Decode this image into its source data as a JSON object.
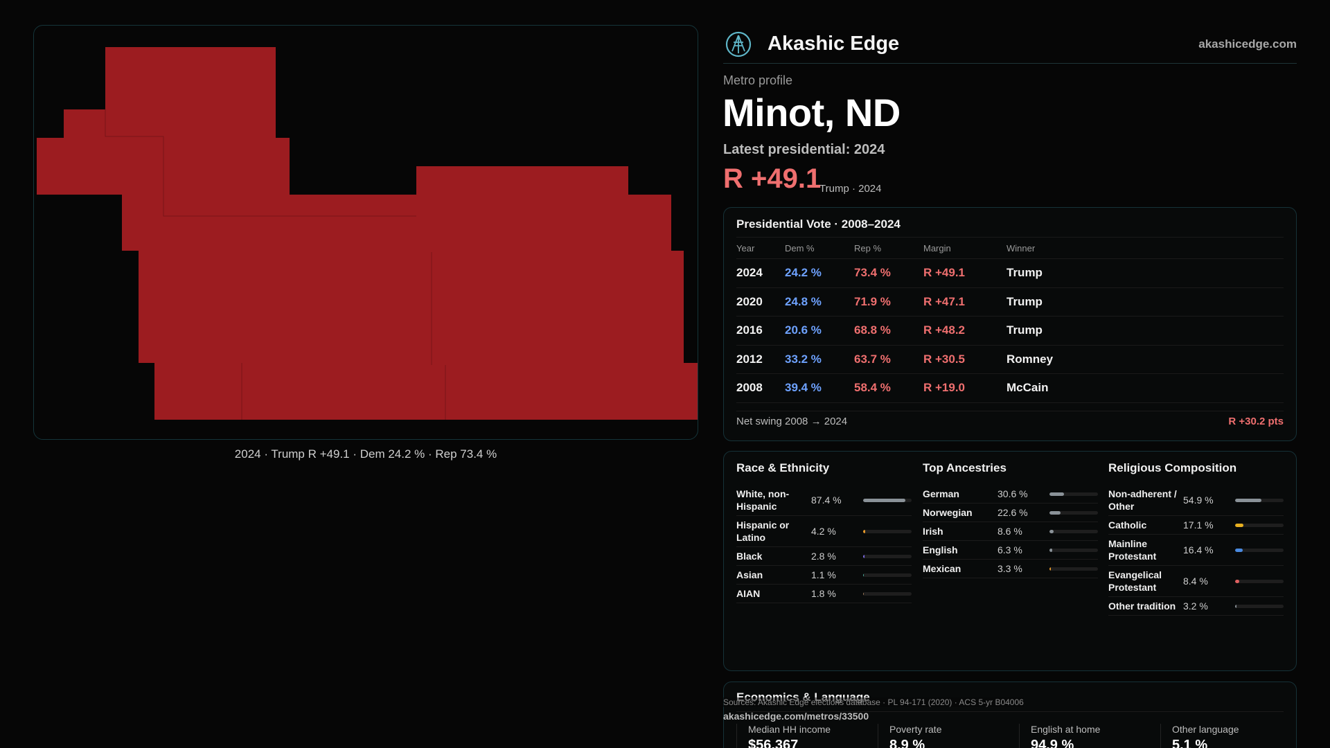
{
  "brand": {
    "name": "Akashic Edge",
    "url": "akashicedge.com"
  },
  "profile": {
    "eyebrow": "Metro profile",
    "title": "Minot, ND",
    "latest_label": "Latest presidential: 2024",
    "margin": "R +49.1",
    "margin_sub": "Trump · 2024"
  },
  "map": {
    "caption": "2024 · Trump R +49.1 · Dem 24.2 % · Rep 73.4 %",
    "fill_color": "#9c1c20"
  },
  "presidential": {
    "title": "Presidential Vote · 2008–2024",
    "headers": [
      "Year",
      "Dem %",
      "Rep %",
      "Margin",
      "Winner"
    ],
    "rows": [
      {
        "year": "2024",
        "dem": "24.2 %",
        "rep": "73.4 %",
        "margin": "R +49.1",
        "winner": "Trump"
      },
      {
        "year": "2020",
        "dem": "24.8 %",
        "rep": "71.9 %",
        "margin": "R +47.1",
        "winner": "Trump"
      },
      {
        "year": "2016",
        "dem": "20.6 %",
        "rep": "68.8 %",
        "margin": "R +48.2",
        "winner": "Trump"
      },
      {
        "year": "2012",
        "dem": "33.2 %",
        "rep": "63.7 %",
        "margin": "R +30.5",
        "winner": "Romney"
      },
      {
        "year": "2008",
        "dem": "39.4 %",
        "rep": "58.4 %",
        "margin": "R +19.0",
        "winner": "McCain"
      }
    ],
    "swing_label": "Net swing 2008 → 2024",
    "swing_value": "R +30.2 pts"
  },
  "demographics": {
    "race": {
      "title": "Race & Ethnicity",
      "items": [
        {
          "label": "White, non-Hispanic",
          "value": "87.4 %",
          "share": 0.874,
          "color": "#8a9298"
        },
        {
          "label": "Hispanic or Latino",
          "value": "4.2 %",
          "share": 0.042,
          "color": "#e89a2a"
        },
        {
          "label": "Black",
          "value": "2.8 %",
          "share": 0.028,
          "color": "#7a6ae0"
        },
        {
          "label": "Asian",
          "value": "1.1 %",
          "share": 0.011,
          "color": "#4ab0a0"
        },
        {
          "label": "AIAN",
          "value": "1.8 %",
          "share": 0.018,
          "color": "#a07a5a"
        }
      ]
    },
    "ancestry": {
      "title": "Top Ancestries",
      "items": [
        {
          "label": "German",
          "value": "30.6 %",
          "share": 0.306,
          "color": "#8a9298"
        },
        {
          "label": "Norwegian",
          "value": "22.6 %",
          "share": 0.226,
          "color": "#8a9298"
        },
        {
          "label": "Irish",
          "value": "8.6 %",
          "share": 0.086,
          "color": "#8a9298"
        },
        {
          "label": "English",
          "value": "6.3 %",
          "share": 0.063,
          "color": "#8a9298"
        },
        {
          "label": "Mexican",
          "value": "3.3 %",
          "share": 0.033,
          "color": "#e89a2a"
        }
      ]
    },
    "religion": {
      "title": "Religious Composition",
      "items": [
        {
          "label": "Non-adherent / Other",
          "value": "54.9 %",
          "share": 0.549,
          "color": "#8a9298"
        },
        {
          "label": "Catholic",
          "value": "17.1 %",
          "share": 0.171,
          "color": "#e8b020"
        },
        {
          "label": "Mainline Protestant",
          "value": "16.4 %",
          "share": 0.164,
          "color": "#4a8ae0"
        },
        {
          "label": "Evangelical Protestant",
          "value": "8.4 %",
          "share": 0.084,
          "color": "#e06060"
        },
        {
          "label": "Other tradition",
          "value": "3.2 %",
          "share": 0.032,
          "color": "#8a9298"
        }
      ]
    }
  },
  "economics": {
    "title": "Economics & Language",
    "stats": [
      {
        "label": "Median HH income",
        "value": "$56,367"
      },
      {
        "label": "Poverty rate",
        "value": "8.9 %"
      },
      {
        "label": "English at home",
        "value": "94.9 %"
      },
      {
        "label": "Other language",
        "value": "5.1 %"
      }
    ]
  },
  "footer": {
    "sources": "Sources: Akashic Edge elections database · PL 94-171 (2020) · ACS 5-yr B04006",
    "url": "akashicedge.com/metros/33500"
  }
}
